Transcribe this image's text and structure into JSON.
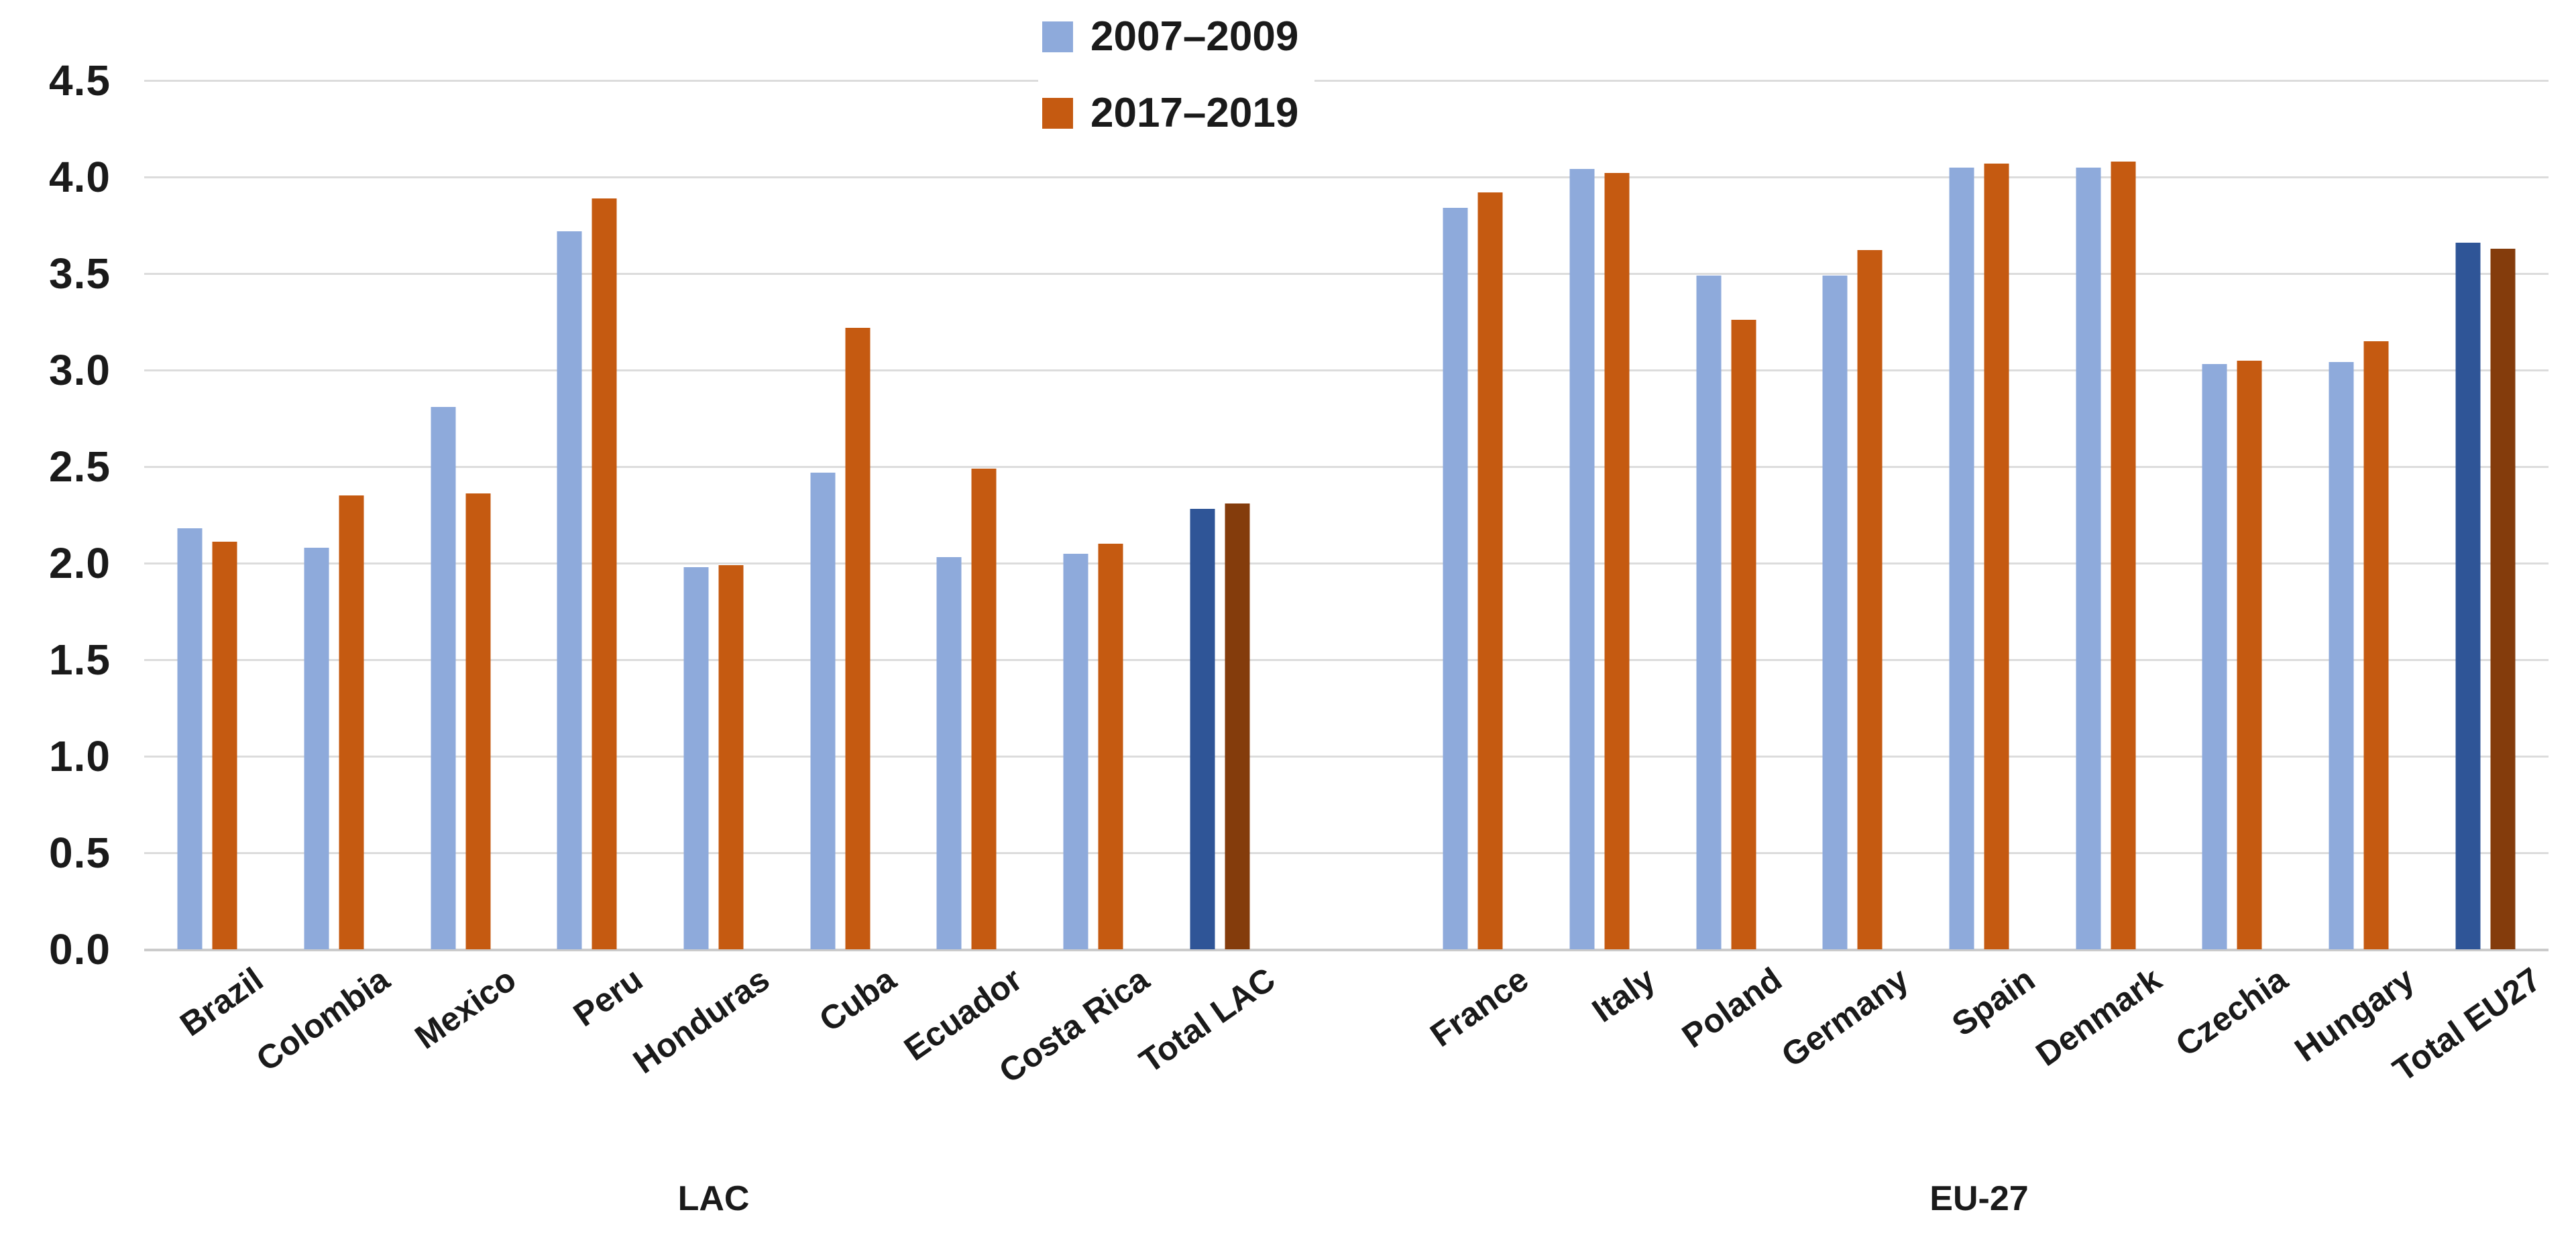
{
  "chart_data": {
    "type": "bar",
    "title": "",
    "y_axis": {
      "min": 0.0,
      "max": 4.5,
      "step": 0.5,
      "tick_labels": [
        "4.5",
        "4.0",
        "3.5",
        "3.0",
        "2.5",
        "2.0",
        "1.5",
        "1.0",
        "0.5",
        "0.0"
      ],
      "grid": true
    },
    "legend": {
      "position": "top-center"
    },
    "series": [
      {
        "name": "2007–2009",
        "color": "#8EAADB",
        "total_color": "#2F5597"
      },
      {
        "name": "2017–2019",
        "color": "#C55A11",
        "total_color": "#843C0C"
      }
    ],
    "groups": [
      {
        "label": "LAC",
        "categories": [
          "Brazil",
          "Colombia",
          "Mexico",
          "Peru",
          "Honduras",
          "Cuba",
          "Ecuador",
          "Costa Rica",
          "Total LAC"
        ],
        "is_total": [
          false,
          false,
          false,
          false,
          false,
          false,
          false,
          false,
          true
        ],
        "values": {
          "2007–2009": [
            2.18,
            2.08,
            2.81,
            3.72,
            1.98,
            2.47,
            2.03,
            2.05,
            2.28
          ],
          "2017–2019": [
            2.11,
            2.35,
            2.36,
            3.89,
            1.99,
            3.22,
            2.49,
            2.1,
            2.31
          ]
        }
      },
      {
        "label": "EU-27",
        "categories": [
          "France",
          "Italy",
          "Poland",
          "Germany",
          "Spain",
          "Denmark",
          "Czechia",
          "Hungary",
          "Total EU27"
        ],
        "is_total": [
          false,
          false,
          false,
          false,
          false,
          false,
          false,
          false,
          true
        ],
        "values": {
          "2007–2009": [
            3.84,
            4.04,
            3.49,
            3.49,
            4.05,
            4.05,
            3.03,
            3.04,
            3.66
          ],
          "2017–2019": [
            3.92,
            4.02,
            3.26,
            3.62,
            4.07,
            4.08,
            3.05,
            3.15,
            3.63
          ]
        }
      }
    ],
    "colors": {
      "gridline": "#DCDCDC",
      "axis_line": "#CBCBCB",
      "text": "#1A1A1A",
      "background": "#FFFFFF"
    }
  }
}
